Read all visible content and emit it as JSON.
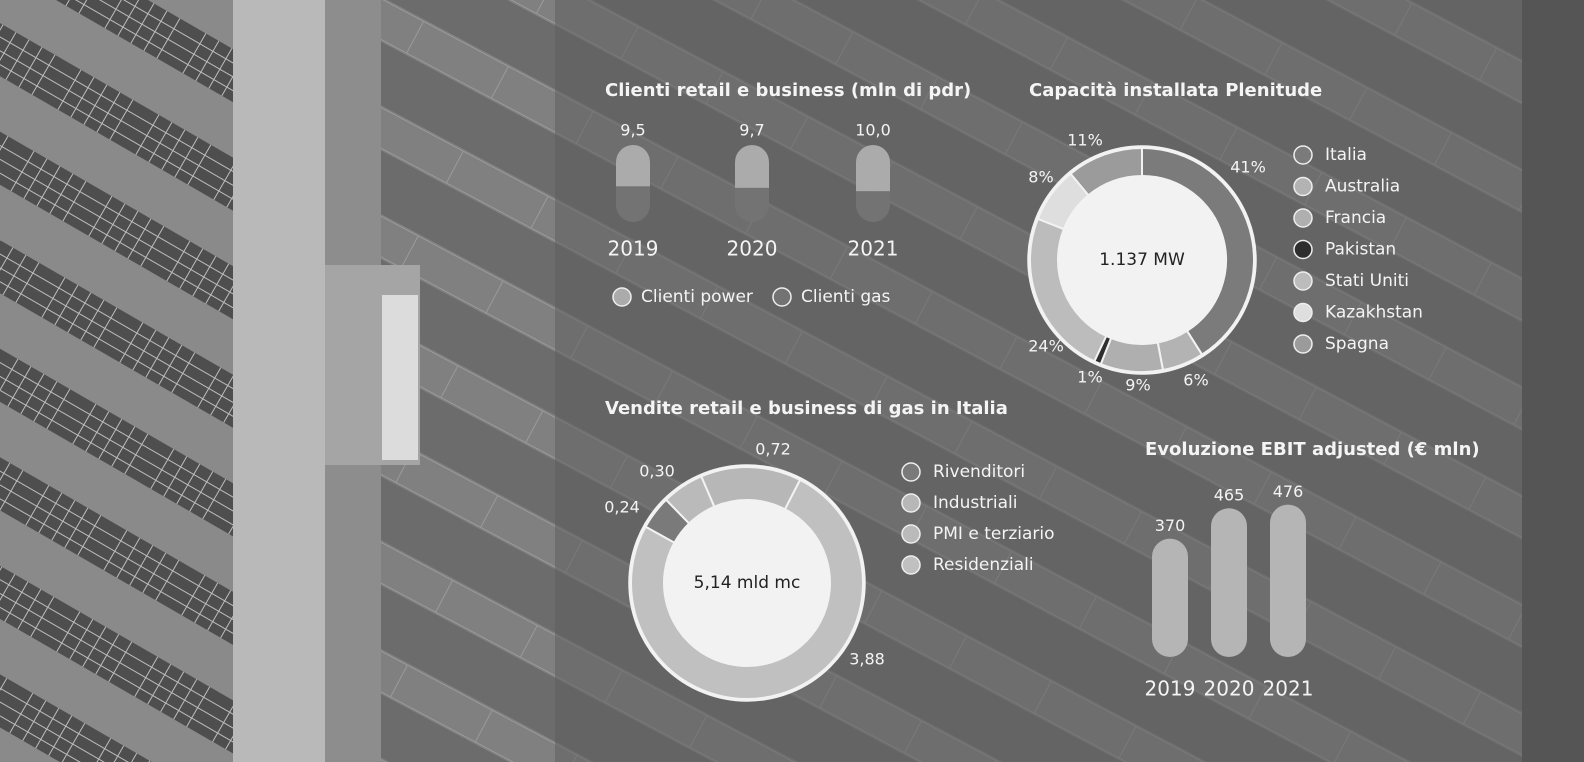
{
  "chart_data": [
    {
      "type": "pillstack",
      "title": "Clienti retail e business (mln di pdr)",
      "categories": [
        "2019",
        "2020",
        "2021"
      ],
      "values": [
        9.5,
        9.7,
        10.0
      ],
      "value_labels": [
        "9,5",
        "9,7",
        "10,0"
      ],
      "series": [
        {
          "name": "Clienti power",
          "color": "#ababab",
          "values": [
            5.1,
            5.4,
            6.0
          ]
        },
        {
          "name": "Clienti gas",
          "color": "#737373",
          "values": [
            4.4,
            4.3,
            4.0
          ]
        }
      ]
    },
    {
      "type": "donut",
      "title": "Capacità installata Plenitude",
      "center_label": "1.137 MW",
      "categories": [
        "Italia",
        "Australia",
        "Francia",
        "Pakistan",
        "Stati Uniti",
        "Kazakhstan",
        "Spagna"
      ],
      "values": [
        41,
        6,
        9,
        1,
        24,
        8,
        11
      ],
      "value_labels": [
        "41%",
        "6%",
        "9%",
        "1%",
        "24%",
        "8%",
        "11%"
      ],
      "colors": [
        "#7b7b7b",
        "#b3b3b3",
        "#afafaf",
        "#2e2e2e",
        "#bcbcbc",
        "#dedede",
        "#9b9b9b"
      ]
    },
    {
      "type": "donut",
      "title": "Vendite retail e business di gas in Italia",
      "center_label": "5,14 mld mc",
      "categories": [
        "Rivenditori",
        "Industriali",
        "PMI e terziario",
        "Residenziali"
      ],
      "values": [
        0.24,
        0.72,
        0.3,
        3.88
      ],
      "value_labels": [
        "0,24",
        "0,72",
        "0,30",
        "3,88"
      ],
      "colors": [
        "#7a7a7a",
        "#b7b7b7",
        "#bababa",
        "#c0c0c0"
      ]
    },
    {
      "type": "pill",
      "title": "Evoluzione EBIT adjusted (€ mln)",
      "categories": [
        "2019",
        "2020",
        "2021"
      ],
      "values": [
        370,
        465,
        476
      ],
      "color": "#b5b5b5"
    }
  ]
}
